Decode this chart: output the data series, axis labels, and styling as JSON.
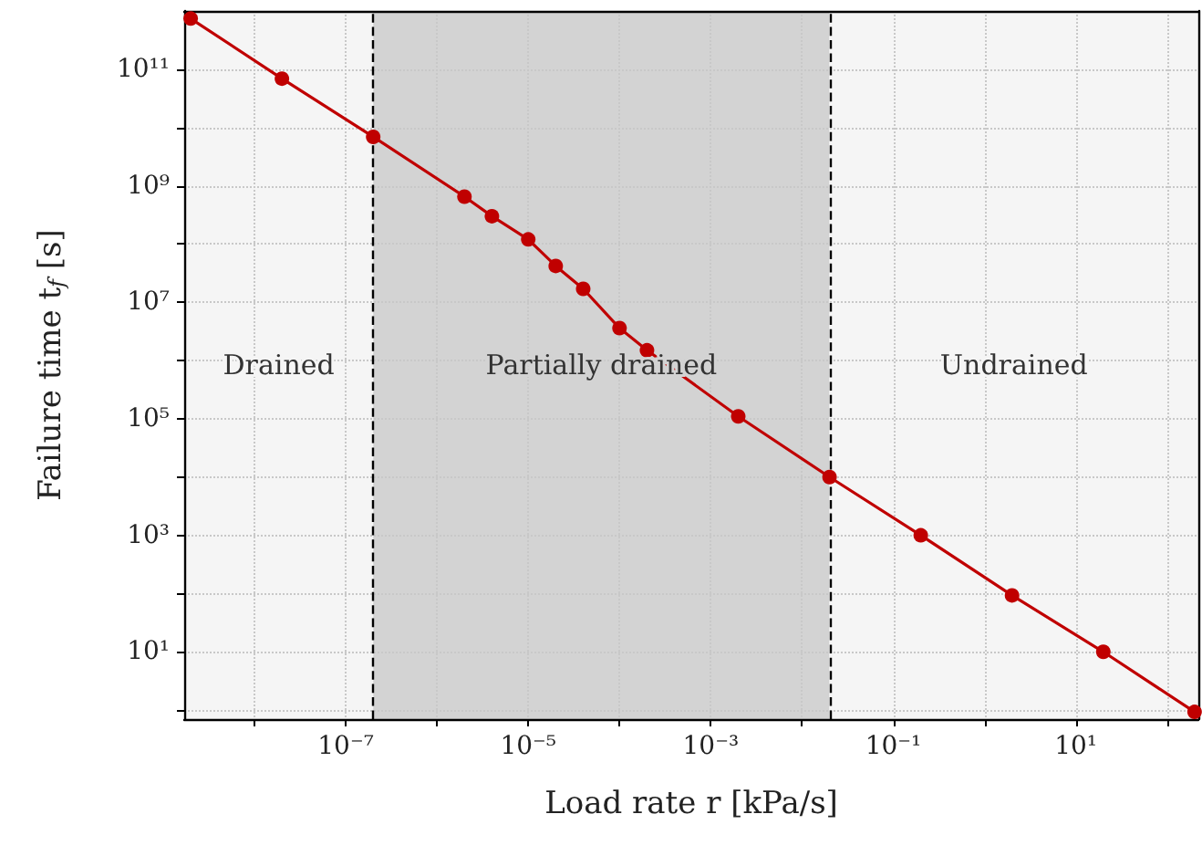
{
  "chart_data": {
    "type": "line",
    "xlabel": "Load rate r [kPa/s]",
    "ylabel": "Failure time t$_{f}$ [s]",
    "log": "xy",
    "x": [
      2e-09,
      2e-08,
      2e-07,
      2e-06,
      4e-06,
      1e-05,
      2e-05,
      4e-05,
      0.0001,
      0.0002,
      0.002,
      0.02,
      0.2,
      2,
      20,
      200
    ],
    "series": [
      {
        "color": "#c00000",
        "values": [
          740000000000.0,
          69000000000.0,
          6900000000.0,
          650000000.0,
          300000000.0,
          120000000.0,
          42000000.0,
          17000000.0,
          3600000.0,
          1500000.0,
          110000.0,
          10000.0,
          1000,
          93,
          10,
          0.93
        ]
      }
    ],
    "xlim": [
      1.7e-09,
      220
    ],
    "ylim": [
      0.7,
      1000000000000.0
    ],
    "xticks": [
      {
        "value": 1e-08,
        "label": null
      },
      {
        "value": 1e-07,
        "label": "10⁻⁷"
      },
      {
        "value": 1e-06,
        "label": null
      },
      {
        "value": 1e-05,
        "label": "10⁻⁵"
      },
      {
        "value": 0.0001,
        "label": null
      },
      {
        "value": 0.001,
        "label": "10⁻³"
      },
      {
        "value": 0.01,
        "label": null
      },
      {
        "value": 0.1,
        "label": "10⁻¹"
      },
      {
        "value": 1,
        "label": null
      },
      {
        "value": 10,
        "label": "10¹"
      },
      {
        "value": 100,
        "label": null
      }
    ],
    "yticks": [
      {
        "value": 1,
        "label": null
      },
      {
        "value": 10,
        "label": "10¹"
      },
      {
        "value": 100,
        "label": null
      },
      {
        "value": 1000,
        "label": "10³"
      },
      {
        "value": 10000.0,
        "label": null
      },
      {
        "value": 100000.0,
        "label": "10⁵"
      },
      {
        "value": 1000000.0,
        "label": null
      },
      {
        "value": 10000000.0,
        "label": "10⁷"
      },
      {
        "value": 100000000.0,
        "label": null
      },
      {
        "value": 1000000000.0,
        "label": "10⁹"
      },
      {
        "value": 10000000000.0,
        "label": null
      },
      {
        "value": 100000000000.0,
        "label": "10¹¹"
      }
    ],
    "bands": [
      {
        "axis": "x",
        "from": 1.7e-09,
        "to": 2e-07,
        "label": "Drained",
        "color": "#f5f5f5"
      },
      {
        "axis": "x",
        "from": 2e-07,
        "to": 0.02,
        "label": "Partially drained",
        "color": "#d3d3d3"
      },
      {
        "axis": "x",
        "from": 0.02,
        "to": 220,
        "label": "Undrained",
        "color": "#f5f5f5"
      }
    ],
    "ref_lines": [
      {
        "axis": "x",
        "value": 2e-07,
        "line_style": "dashed",
        "color": "#000000"
      },
      {
        "axis": "x",
        "value": 0.02,
        "line_style": "dashed",
        "color": "#000000"
      }
    ],
    "grid": true,
    "marker": "circle",
    "line_style": "solid"
  }
}
